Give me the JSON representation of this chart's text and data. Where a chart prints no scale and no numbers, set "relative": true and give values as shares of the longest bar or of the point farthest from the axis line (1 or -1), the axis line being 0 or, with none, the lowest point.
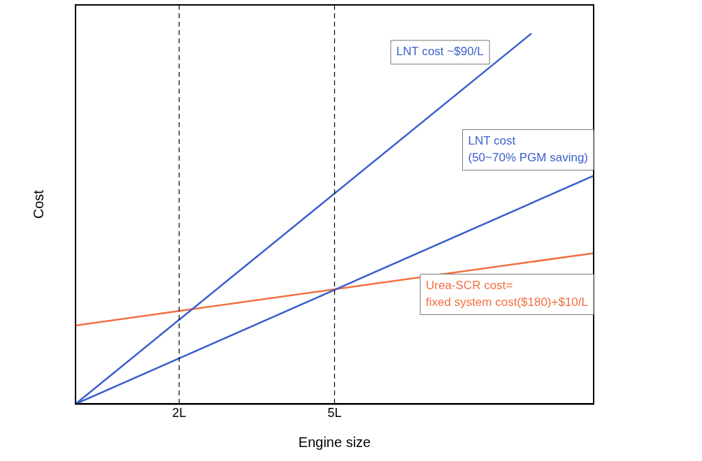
{
  "chart_data": {
    "type": "line",
    "xlabel": "Engine size",
    "ylabel": "Cost",
    "relative": true,
    "xlim": [
      0,
      10
    ],
    "xticks": [
      {
        "value": 2,
        "label": "2L"
      },
      {
        "value": 5,
        "label": "5L"
      }
    ],
    "series": [
      {
        "name": "LNT cost ~$90/L",
        "color": "#3a5fcd",
        "x": [
          0,
          8.8
        ],
        "values": [
          0,
          1
        ]
      },
      {
        "name": "LNT cost\n(50~70% PGM saving)",
        "color": "#3a5fcd",
        "x": [
          0,
          10
        ],
        "values": [
          0,
          0.616
        ]
      },
      {
        "name": "Urea-SCR cost=\nfixed system cost($180)+$10/L",
        "color": "#f2703f",
        "x": [
          0,
          10
        ],
        "values": [
          0.212,
          0.407
        ]
      }
    ],
    "ref_lines": [
      {
        "axis": "x",
        "value": 2,
        "line_style": "dashed",
        "color": "#000000"
      },
      {
        "axis": "x",
        "value": 5,
        "line_style": "dashed",
        "color": "#000000"
      }
    ],
    "grid": false,
    "legend": false,
    "marker": "none",
    "line_style": "solid"
  }
}
